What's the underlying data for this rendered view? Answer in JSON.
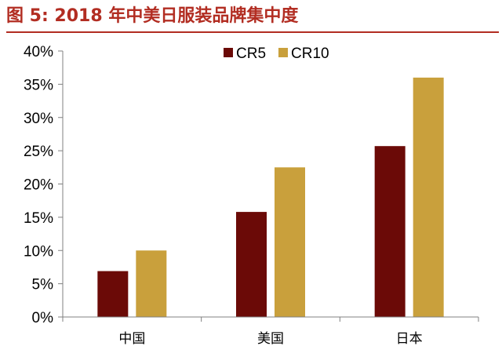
{
  "figure_title": "图 5:  2018 年中美日服装品牌集中度",
  "colors": {
    "title": "#b22d22",
    "CR5": "#6b0a07",
    "CR10": "#c9a03c",
    "axis": "#808080"
  },
  "chart_data": {
    "type": "bar",
    "title": "",
    "xlabel": "",
    "ylabel": "",
    "categories": [
      "中国",
      "美国",
      "日本"
    ],
    "series": [
      {
        "name": "CR5",
        "values": [
          6.9,
          15.8,
          25.7
        ]
      },
      {
        "name": "CR10",
        "values": [
          10.0,
          22.5,
          36.0
        ]
      }
    ],
    "ylim": [
      0,
      40
    ],
    "yticks": [
      "0%",
      "5%",
      "10%",
      "15%",
      "20%",
      "25%",
      "30%",
      "35%",
      "40%"
    ],
    "legend_position": "top-center",
    "grid": false
  }
}
